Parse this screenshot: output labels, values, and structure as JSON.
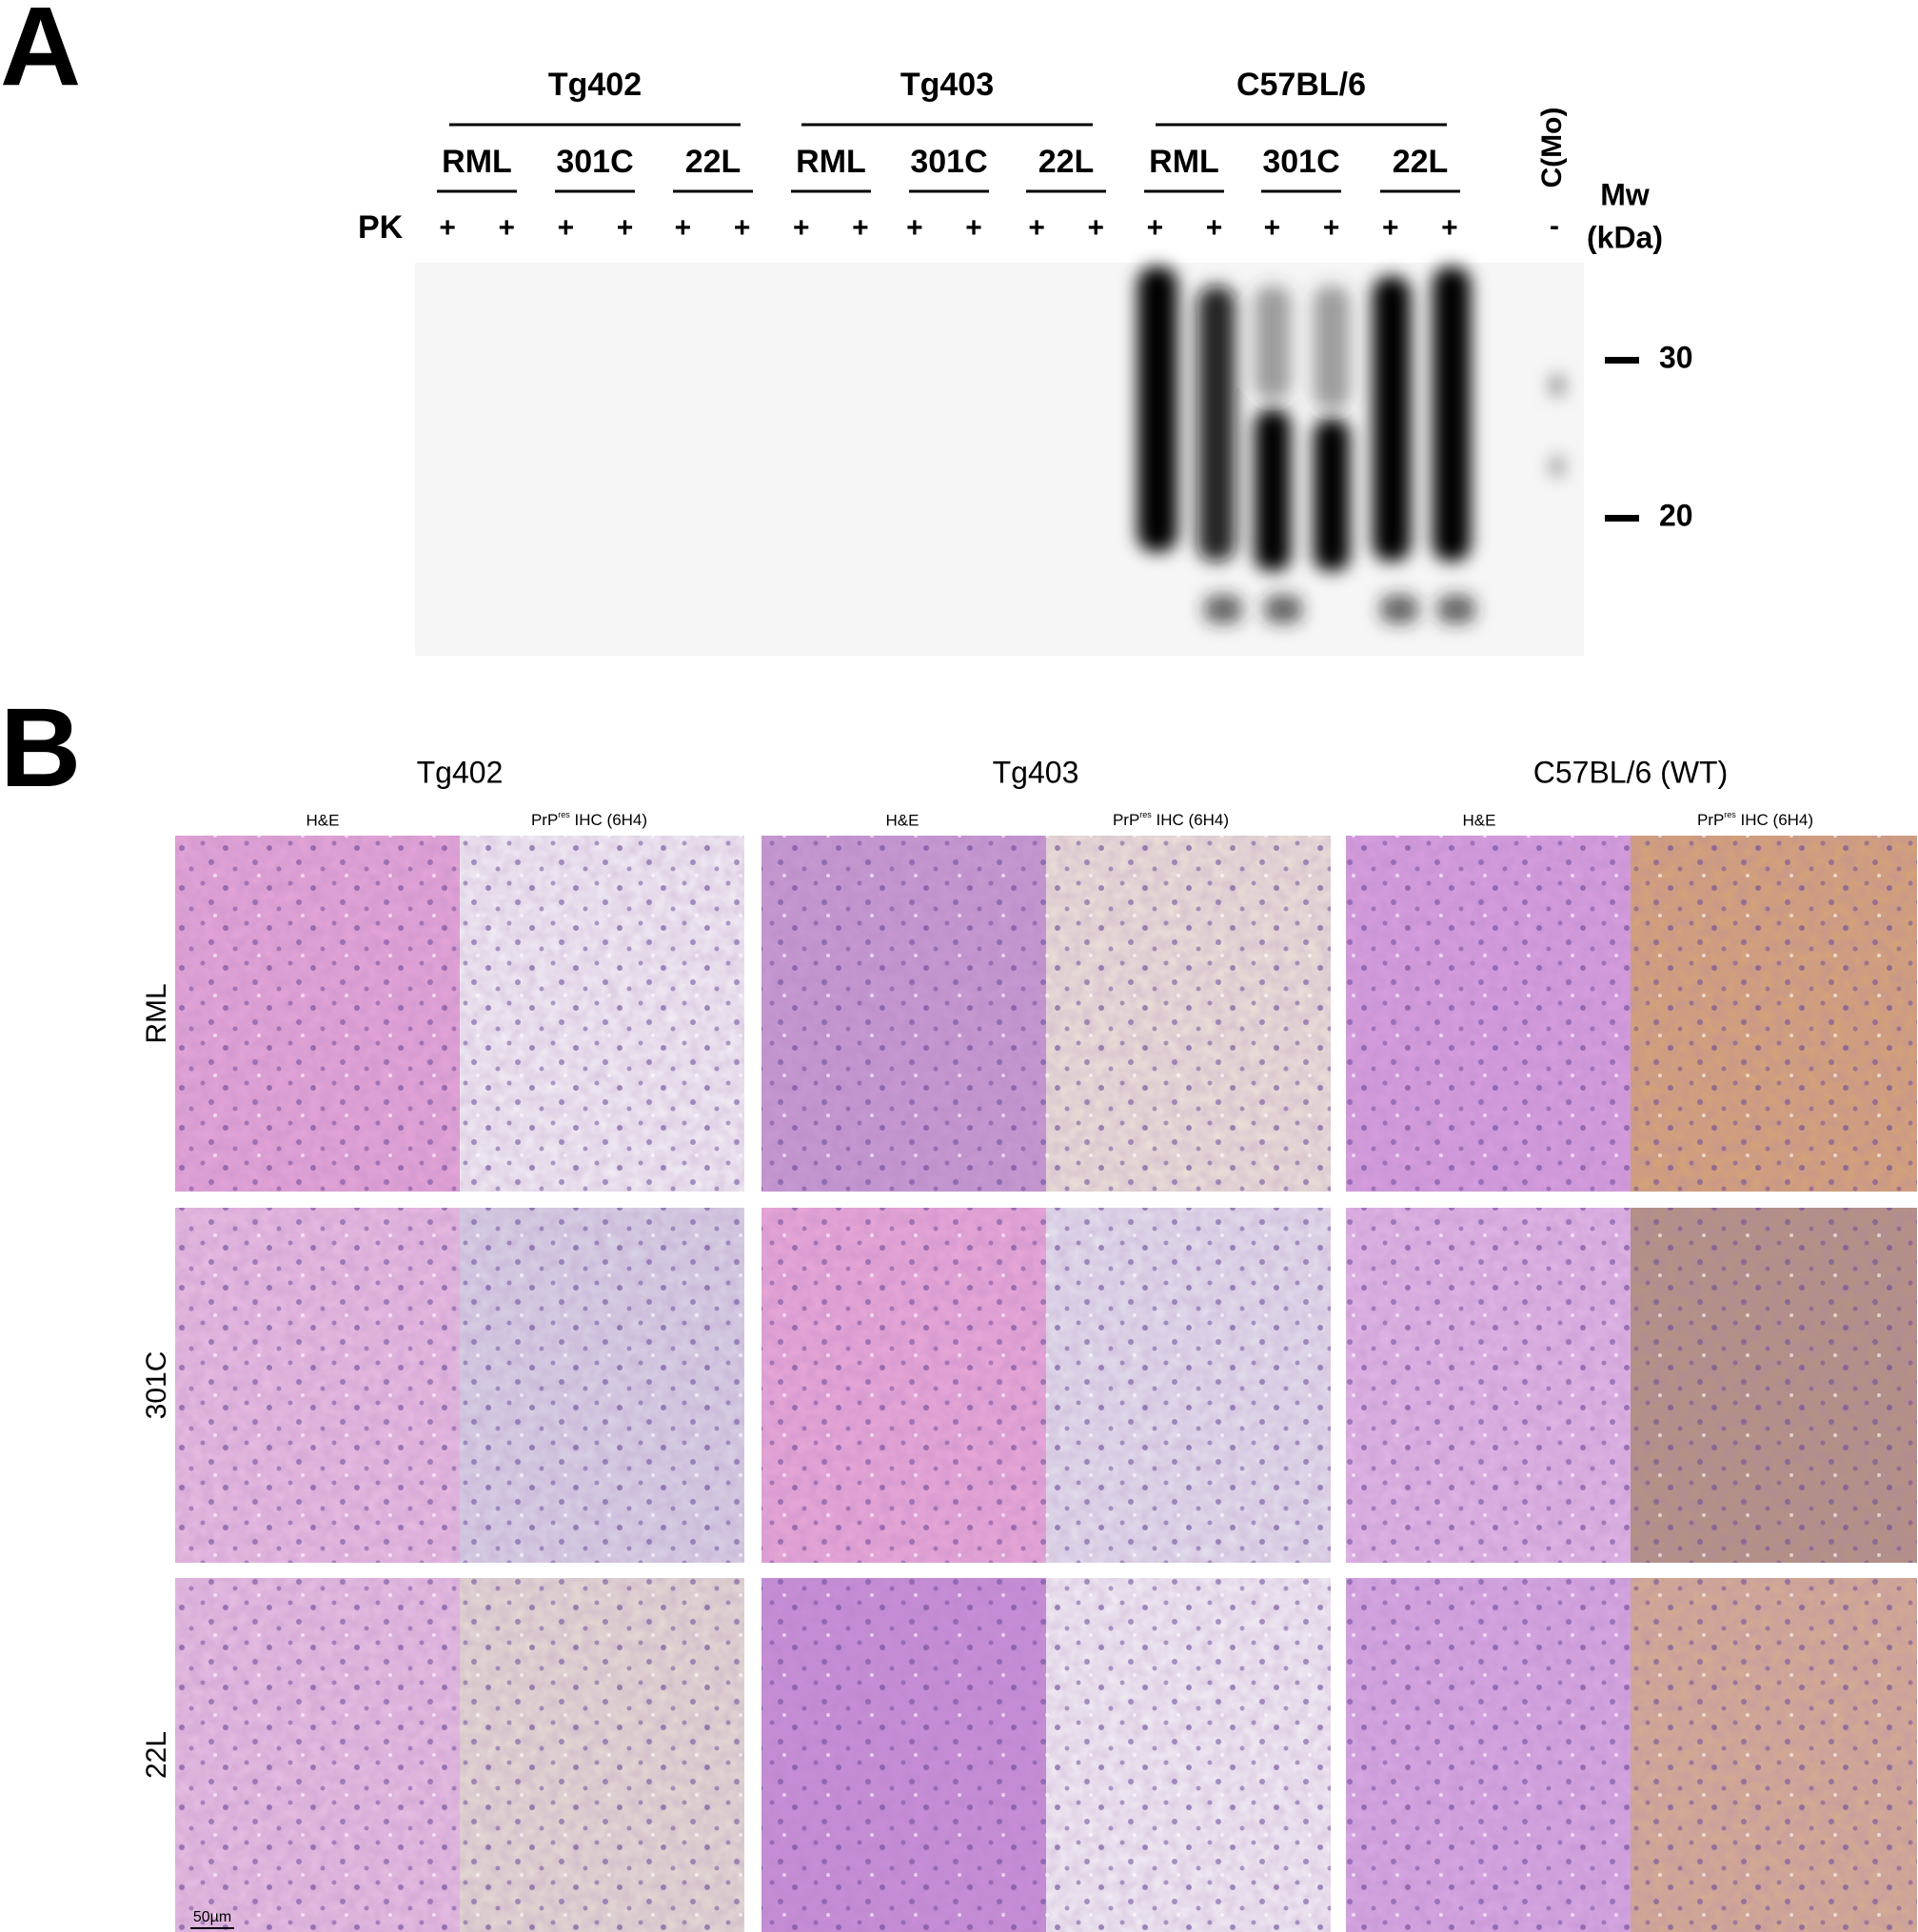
{
  "panel_a": {
    "label": "A",
    "groups": [
      {
        "name": "Tg402",
        "strains": [
          "RML",
          "301C",
          "22L"
        ]
      },
      {
        "name": "Tg403",
        "strains": [
          "RML",
          "301C",
          "22L"
        ]
      },
      {
        "name": "C57BL/6",
        "strains": [
          "RML",
          "301C",
          "22L"
        ]
      }
    ],
    "pk_label": "PK",
    "pk_signs": [
      "+",
      "+",
      "+",
      "+",
      "+",
      "+",
      "+",
      "+",
      "+",
      "+",
      "+",
      "+",
      "+",
      "+",
      "+",
      "+",
      "+",
      "+"
    ],
    "control_sign": "-",
    "control_label": "C(Mo)",
    "mw_label": "Mw",
    "mw_unit": "(kDa)",
    "markers": [
      "30",
      "20"
    ]
  },
  "panel_b": {
    "label": "B",
    "groups": [
      "Tg402",
      "Tg403",
      "C57BL/6 (WT)"
    ],
    "stain_he": "H&E",
    "stain_ihc": {
      "text": "PrP",
      "sup": "res",
      "rest": " IHC (6H4)"
    },
    "rows": [
      "RML",
      "301C",
      "22L"
    ],
    "scale_bar": "50µm"
  }
}
